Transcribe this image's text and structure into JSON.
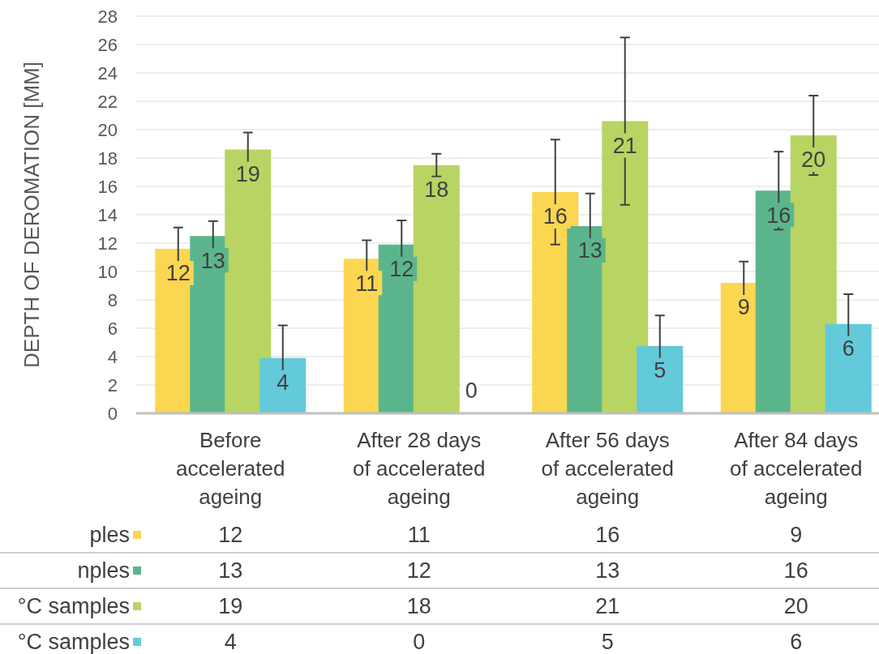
{
  "chart_data": {
    "type": "bar",
    "ylabel": "DEPTH OF DEROMATION [MM]",
    "categories": [
      "Before accelerated ageing",
      "After 28 days of accelerated ageing",
      "After 56 days of accelerated ageing",
      "After 84 days of accelerated ageing"
    ],
    "ylim": [
      0,
      28
    ],
    "yticks": [
      0,
      2,
      4,
      6,
      8,
      10,
      12,
      14,
      16,
      18,
      20,
      22,
      24,
      26,
      28
    ],
    "grid": "y",
    "legend": "bottom",
    "series": [
      {
        "name": "ples",
        "color": "#fbd651",
        "values": [
          11.6,
          10.9,
          15.6,
          9.2
        ],
        "errors": [
          1.5,
          1.3,
          3.7,
          1.5
        ],
        "value_labels": [
          "12",
          "11",
          "16",
          "9"
        ]
      },
      {
        "name": "nples",
        "color": "#5bb58c",
        "values": [
          12.5,
          11.9,
          13.2,
          15.7
        ],
        "errors": [
          1.05,
          1.7,
          2.3,
          2.75
        ],
        "value_labels": [
          "13",
          "12",
          "13",
          "16"
        ]
      },
      {
        "name": "°C samples",
        "color": "#b8d463",
        "values": [
          18.6,
          17.5,
          20.6,
          19.6
        ],
        "errors": [
          1.2,
          0.8,
          5.9,
          2.8
        ],
        "value_labels": [
          "19",
          "18",
          "21",
          "20"
        ]
      },
      {
        "name": "°C samples",
        "color": "#63cad9",
        "values": [
          3.9,
          0,
          4.75,
          6.3
        ],
        "errors": [
          2.3,
          null,
          2.15,
          2.1
        ],
        "value_labels": [
          "4",
          "0",
          "5",
          "6"
        ]
      }
    ]
  }
}
